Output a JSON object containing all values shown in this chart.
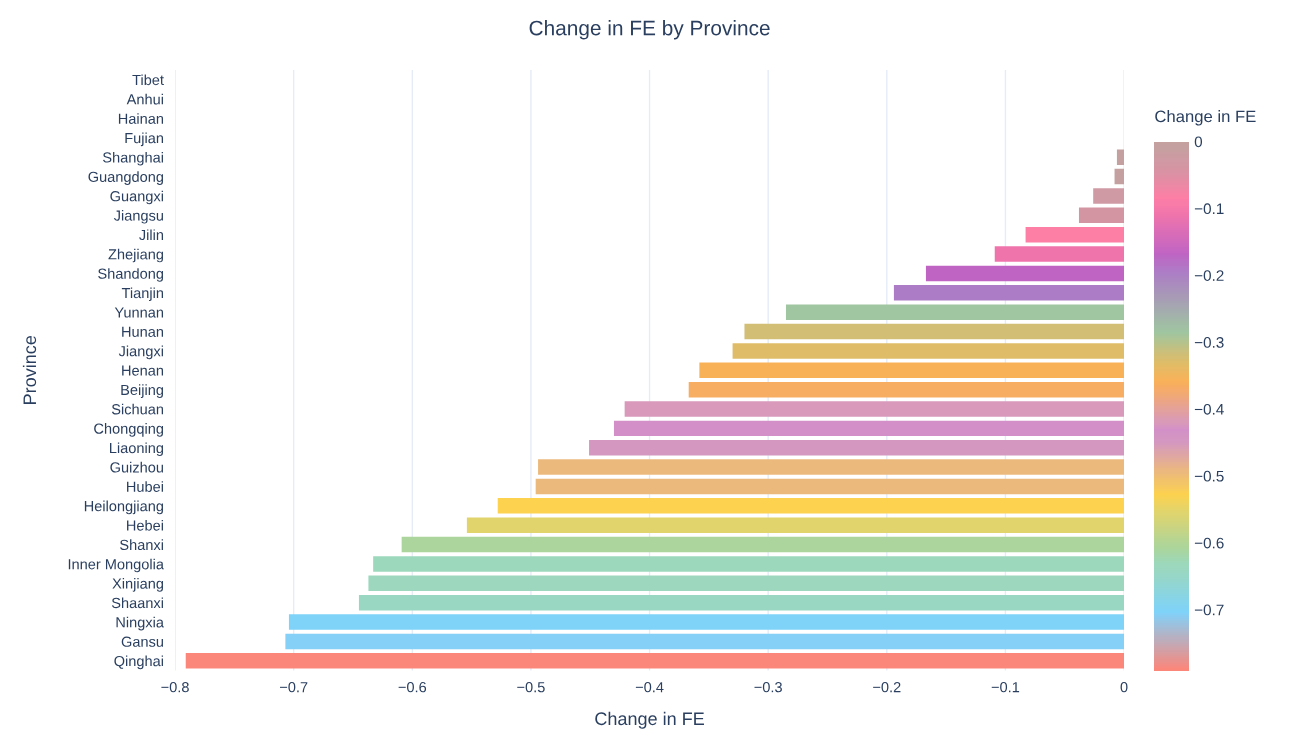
{
  "chart_data": {
    "type": "bar",
    "orientation": "horizontal",
    "title": "Change in FE by Province",
    "xlabel": "Change in FE",
    "ylabel": "Province",
    "clabel": "Change in FE",
    "categories": [
      "Tibet",
      "Anhui",
      "Hainan",
      "Fujian",
      "Shanghai",
      "Guangdong",
      "Guangxi",
      "Jiangsu",
      "Jilin",
      "Zhejiang",
      "Shandong",
      "Tianjin",
      "Yunnan",
      "Hunan",
      "Jiangxi",
      "Henan",
      "Beijing",
      "Sichuan",
      "Chongqing",
      "Liaoning",
      "Guizhou",
      "Hubei",
      "Heilongjiang",
      "Hebei",
      "Shanxi",
      "Inner Mongolia",
      "Xinjiang",
      "Shaanxi",
      "Ningxia",
      "Gansu",
      "Qinghai"
    ],
    "values": [
      0,
      0,
      0,
      0,
      -0.006,
      -0.008,
      -0.026,
      -0.038,
      -0.083,
      -0.109,
      -0.167,
      -0.194,
      -0.285,
      -0.32,
      -0.33,
      -0.358,
      -0.367,
      -0.421,
      -0.43,
      -0.451,
      -0.494,
      -0.496,
      -0.528,
      -0.554,
      -0.609,
      -0.633,
      -0.637,
      -0.645,
      -0.704,
      -0.707,
      -0.791
    ],
    "colors": [
      "#c4a09f",
      "#c4a09f",
      "#c4a09f",
      "#c4a09f",
      "#c4a0a0",
      "#c4a0a0",
      "#cf9aa3",
      "#d495a3",
      "#fd7fa6",
      "#ef74ac",
      "#c064c4",
      "#ad7cc6",
      "#9fc6a0",
      "#d2be74",
      "#dfbd68",
      "#f9b158",
      "#f7ad62",
      "#d899bb",
      "#d390c8",
      "#d498c0",
      "#ecb97c",
      "#ecb97c",
      "#fdd24f",
      "#e2d46c",
      "#abd59c",
      "#9cd8bc",
      "#9dd8be",
      "#9ad7c2",
      "#7fd3f9",
      "#84d0f7",
      "#fb877b"
    ],
    "clim": [
      -0.791,
      0
    ],
    "cticks": [
      0,
      {
        "value": -0.1,
        "label": "−0.1"
      },
      {
        "value": -0.2,
        "label": "−0.2"
      },
      {
        "value": -0.3,
        "label": "−0.3"
      },
      {
        "value": -0.4,
        "label": "−0.4"
      },
      {
        "value": -0.5,
        "label": "−0.5"
      },
      {
        "value": -0.6,
        "label": "−0.6"
      },
      {
        "value": -0.7,
        "label": "−0.7"
      }
    ],
    "xlim": [
      -0.8,
      0
    ],
    "xticks": [
      {
        "value": -0.8,
        "label": "−0.8"
      },
      {
        "value": -0.7,
        "label": "−0.7"
      },
      {
        "value": -0.6,
        "label": "−0.6"
      },
      {
        "value": -0.5,
        "label": "−0.5"
      },
      {
        "value": -0.4,
        "label": "−0.4"
      },
      {
        "value": -0.3,
        "label": "−0.3"
      },
      {
        "value": -0.2,
        "label": "−0.2"
      },
      {
        "value": -0.1,
        "label": "−0.1"
      },
      0
    ],
    "grid": "x",
    "legend": false
  }
}
